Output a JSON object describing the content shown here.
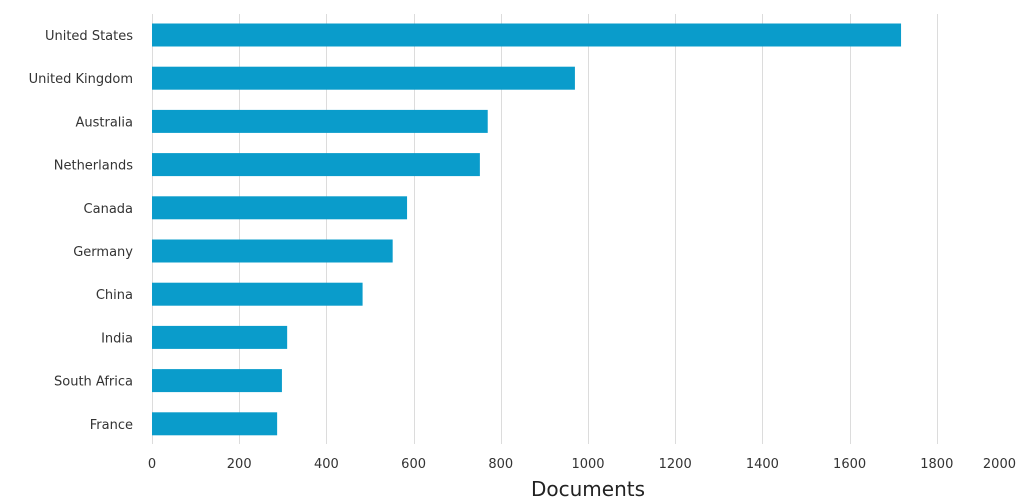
{
  "chart_data": {
    "type": "bar",
    "orientation": "horizontal",
    "categories": [
      "United States",
      "United Kingdom",
      "Australia",
      "Netherlands",
      "Canada",
      "Germany",
      "China",
      "India",
      "South Africa",
      "France"
    ],
    "values": [
      1718,
      970,
      770,
      752,
      585,
      552,
      483,
      310,
      298,
      287
    ],
    "xlabel": "Documents",
    "ylabel": "",
    "xlim": [
      0,
      2000
    ],
    "xticks": [
      "0",
      "200",
      "400",
      "600",
      "800",
      "1000",
      "1200",
      "1400",
      "1600",
      "1800",
      "2000"
    ],
    "grid": "vertical",
    "legend": "none",
    "bar_color": "#0a9ccb"
  }
}
